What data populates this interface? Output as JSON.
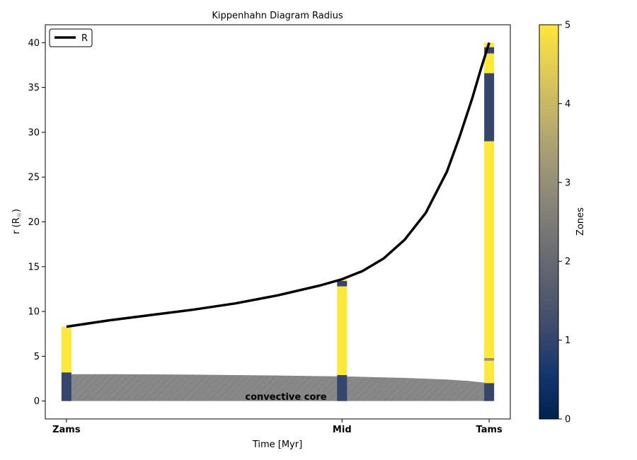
{
  "chart_data": {
    "type": "area",
    "title": "Kippenhahn Diagram Radius",
    "xlabel": "Time [Myr]",
    "ylabel": "r (R",
    "ylabel_sub": "☉",
    "ylabel_close": ")",
    "ylim": [
      -2,
      42
    ],
    "yticks": [
      0,
      5,
      10,
      15,
      20,
      25,
      30,
      35,
      40
    ],
    "xlim": [
      -0.05,
      1.05
    ],
    "xtick_values": [
      0,
      0.652,
      1.0
    ],
    "xtick_labels": [
      "Zams",
      "Mid",
      "Tams"
    ],
    "legend": {
      "entries": [
        "R"
      ],
      "placement": "top-left"
    },
    "radius_series": {
      "name": "R",
      "color": "#000000",
      "x": [
        0,
        0.1,
        0.2,
        0.3,
        0.4,
        0.5,
        0.6,
        0.652,
        0.7,
        0.75,
        0.8,
        0.85,
        0.9,
        0.93,
        0.96,
        0.98,
        1.0
      ],
      "y": [
        8.3,
        9.0,
        9.6,
        10.2,
        10.9,
        11.8,
        12.9,
        13.6,
        14.5,
        15.9,
        18.0,
        21.0,
        25.6,
        29.5,
        33.8,
        37.0,
        40.0
      ]
    },
    "convective_core": {
      "label": "convective core",
      "color": "#888888",
      "x": [
        0,
        0.1,
        0.2,
        0.3,
        0.4,
        0.5,
        0.6,
        0.652,
        0.7,
        0.8,
        0.9,
        0.95,
        1.0
      ],
      "y": [
        3.0,
        3.0,
        2.98,
        2.95,
        2.9,
        2.85,
        2.78,
        2.75,
        2.7,
        2.58,
        2.4,
        2.25,
        2.0
      ]
    },
    "zone_columns": [
      {
        "x": 0,
        "segments": [
          {
            "from": 0,
            "to": 3.2,
            "zone": 1
          },
          {
            "from": 3.2,
            "to": 8.3,
            "zone": 5
          }
        ]
      },
      {
        "x": 0.652,
        "segments": [
          {
            "from": 0,
            "to": 2.9,
            "zone": 1
          },
          {
            "from": 2.9,
            "to": 12.8,
            "zone": 5
          },
          {
            "from": 12.8,
            "to": 13.4,
            "zone": 1
          },
          {
            "from": 13.4,
            "to": 13.6,
            "zone": 5
          }
        ]
      },
      {
        "x": 1.0,
        "segments": [
          {
            "from": 0,
            "to": 2.0,
            "zone": 1
          },
          {
            "from": 2.0,
            "to": 4.5,
            "zone": 5
          },
          {
            "from": 4.5,
            "to": 4.8,
            "zone": 3
          },
          {
            "from": 4.8,
            "to": 29.0,
            "zone": 5
          },
          {
            "from": 29.0,
            "to": 36.6,
            "zone": 1
          },
          {
            "from": 36.6,
            "to": 38.8,
            "zone": 5
          },
          {
            "from": 38.8,
            "to": 39.5,
            "zone": 1
          },
          {
            "from": 39.5,
            "to": 40.0,
            "zone": 5
          }
        ]
      }
    ],
    "colorbar": {
      "label": "Zones",
      "colormap": "cividis",
      "range": [
        0,
        5
      ],
      "ticks": [
        0,
        1,
        2,
        3,
        4,
        5
      ],
      "zone_colors": {
        "0": "#00224e",
        "1": "#35456c",
        "2": "#666970",
        "3": "#958f78",
        "4": "#cbba69",
        "5": "#fee838"
      }
    },
    "grid": false
  }
}
